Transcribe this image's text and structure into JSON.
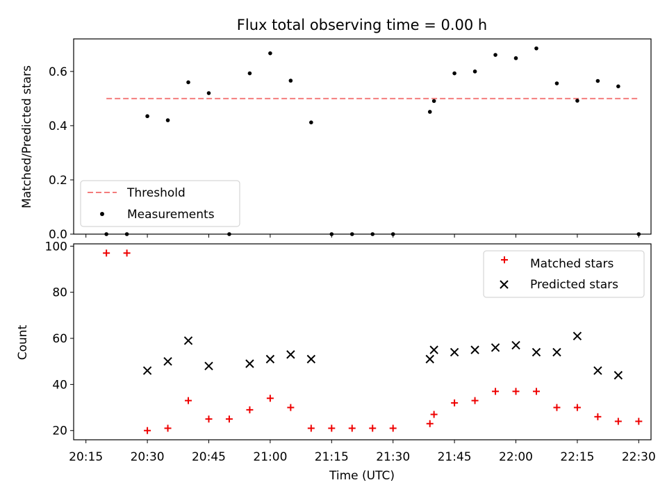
{
  "chart_data": [
    {
      "type": "scatter",
      "panel": "top",
      "title": "Flux total observing time = 0.00 h",
      "xlabel": "",
      "ylabel": "Matched/Predicted stars",
      "xlim": [
        "20:12",
        "22:33"
      ],
      "ylim": [
        0.0,
        0.72
      ],
      "yticks": [
        0.0,
        0.2,
        0.4,
        0.6
      ],
      "ytick_labels": [
        "0.0",
        "0.2",
        "0.4",
        "0.6"
      ],
      "legend": {
        "position": "lower-left",
        "entries": [
          "Threshold",
          "Measurements"
        ]
      },
      "series": [
        {
          "name": "Threshold",
          "style": "dashed-line",
          "color": "#f47c7c",
          "x": [
            "20:20",
            "22:30"
          ],
          "y": [
            0.5,
            0.5
          ]
        },
        {
          "name": "Measurements",
          "style": "dot",
          "color": "#000000",
          "x": [
            "20:20",
            "20:25",
            "20:30",
            "20:35",
            "20:40",
            "20:45",
            "20:50",
            "20:55",
            "21:00",
            "21:05",
            "21:10",
            "21:15",
            "21:20",
            "21:25",
            "21:30",
            "21:39",
            "21:40",
            "21:45",
            "21:50",
            "21:55",
            "22:00",
            "22:05",
            "22:10",
            "22:15",
            "22:20",
            "22:25",
            "22:30"
          ],
          "y": [
            0.0,
            0.0,
            0.435,
            0.42,
            0.56,
            0.52,
            0.0,
            0.593,
            0.667,
            0.566,
            0.412,
            0.0,
            0.0,
            0.0,
            0.0,
            0.451,
            0.491,
            0.593,
            0.6,
            0.661,
            0.649,
            0.685,
            0.556,
            0.492,
            0.565,
            0.545,
            0.0
          ]
        }
      ]
    },
    {
      "type": "scatter",
      "panel": "bottom",
      "xlabel": "Time (UTC)",
      "ylabel": "Count",
      "xlim": [
        "20:12",
        "22:33"
      ],
      "ylim": [
        16,
        101
      ],
      "xticks": [
        "20:15",
        "20:30",
        "20:45",
        "21:00",
        "21:15",
        "21:30",
        "21:45",
        "22:00",
        "22:15",
        "22:30"
      ],
      "yticks": [
        20,
        40,
        60,
        80,
        100
      ],
      "ytick_labels": [
        "20",
        "40",
        "60",
        "80",
        "100"
      ],
      "legend": {
        "position": "upper-right",
        "entries": [
          "Matched stars",
          "Predicted stars"
        ]
      },
      "series": [
        {
          "name": "Matched stars",
          "marker": "+",
          "color": "#ee0000",
          "x": [
            "20:20",
            "20:25",
            "20:30",
            "20:35",
            "20:40",
            "20:45",
            "20:50",
            "20:55",
            "21:00",
            "21:05",
            "21:10",
            "21:15",
            "21:20",
            "21:25",
            "21:30",
            "21:39",
            "21:40",
            "21:45",
            "21:50",
            "21:55",
            "22:00",
            "22:05",
            "22:10",
            "22:15",
            "22:20",
            "22:25",
            "22:30"
          ],
          "y": [
            97,
            97,
            20,
            21,
            33,
            25,
            25,
            29,
            34,
            30,
            21,
            21,
            21,
            21,
            21,
            23,
            27,
            32,
            33,
            37,
            37,
            37,
            30,
            30,
            26,
            24,
            24
          ]
        },
        {
          "name": "Predicted stars",
          "marker": "x",
          "color": "#000000",
          "x": [
            "20:30",
            "20:35",
            "20:40",
            "20:45",
            "20:55",
            "21:00",
            "21:05",
            "21:10",
            "21:39",
            "21:40",
            "21:45",
            "21:50",
            "21:55",
            "22:00",
            "22:05",
            "22:10",
            "22:15",
            "22:20",
            "22:25"
          ],
          "y": [
            46,
            50,
            59,
            48,
            49,
            51,
            53,
            51,
            51,
            55,
            54,
            55,
            56,
            57,
            54,
            54,
            61,
            46,
            44
          ]
        }
      ]
    }
  ]
}
